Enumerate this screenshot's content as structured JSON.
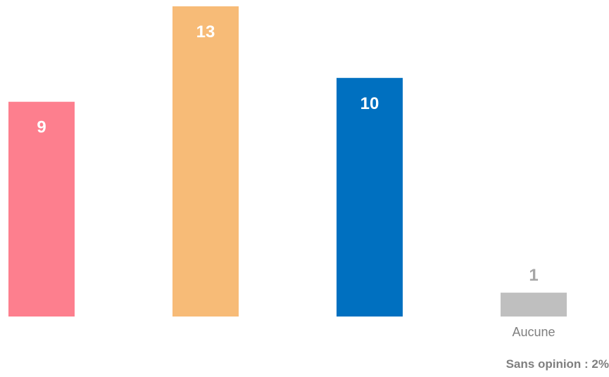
{
  "chart_data": {
    "type": "bar",
    "categories": [
      "",
      "",
      "",
      "Aucune"
    ],
    "values": [
      9,
      13,
      10,
      1
    ],
    "colors": [
      "#fd7f8e",
      "#f7bb77",
      "#0070c0",
      "#bfbfbf"
    ],
    "label_colors": [
      "#ffffff",
      "#ffffff",
      "#ffffff",
      "#a6a6a6"
    ],
    "title": "",
    "xlabel": "",
    "ylabel": "",
    "ylim": [
      0,
      13
    ],
    "grid": false,
    "legend": "none"
  },
  "footnote": "Sans opinion : 2%"
}
